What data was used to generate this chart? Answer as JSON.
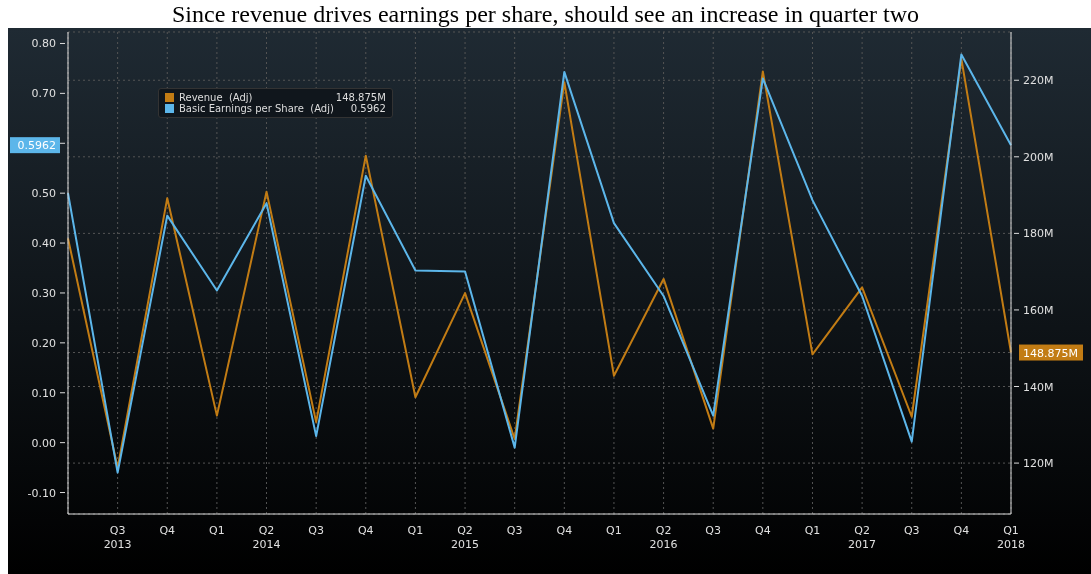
{
  "chart_data": {
    "type": "line",
    "title": "Since revenue drives earnings per share, should see an increase in quarter two",
    "categories": [
      null,
      "Q3",
      "Q4",
      "Q1",
      "Q2",
      "Q3",
      "Q4",
      "Q1",
      "Q2",
      "Q3",
      "Q4",
      "Q1",
      "Q2",
      "Q3",
      "Q4",
      "Q1",
      "Q2",
      "Q3",
      "Q4",
      "Q1"
    ],
    "series": [
      {
        "name": "Revenue  (Adj)",
        "color": "#c27c14",
        "axis": "y2",
        "values": [
          178.7,
          118.8,
          189.2,
          132.4,
          190.9,
          130.7,
          200.3,
          137.2,
          164.4,
          126.3,
          219.5,
          142.8,
          168.1,
          129.0,
          222.3,
          148.4,
          165.9,
          132.1,
          225.6,
          148.875
        ]
      },
      {
        "name": "Basic Earnings per Share  (Adj)",
        "color": "#5cb6ea",
        "values": [
          0.5,
          -0.06,
          0.455,
          0.305,
          0.48,
          0.013,
          0.535,
          0.345,
          0.343,
          -0.01,
          0.743,
          0.44,
          0.294,
          0.054,
          0.73,
          0.486,
          0.294,
          0.002,
          0.778,
          0.5962
        ]
      }
    ],
    "ylim": [
      -0.143,
      0.823
    ],
    "yticks": [
      {
        "value": -0.1,
        "label": "-0.10"
      },
      {
        "value": 0,
        "label": "0.00"
      },
      {
        "value": 0.1,
        "label": "0.10"
      },
      {
        "value": 0.2,
        "label": "0.20"
      },
      {
        "value": 0.3,
        "label": "0.30"
      },
      {
        "value": 0.4,
        "label": "0.40"
      },
      {
        "value": 0.5,
        "label": "0.50"
      },
      {
        "value": 0.5962,
        "label": "0.5962"
      },
      {
        "value": 0.6,
        "label": null
      },
      {
        "value": 0.7,
        "label": "0.70"
      },
      {
        "value": 0.8,
        "label": "0.80"
      }
    ],
    "y2lim": [
      106.7,
      232.6
    ],
    "y2ticks": [
      {
        "value": 120,
        "label": "120M"
      },
      {
        "value": 140,
        "label": "140M"
      },
      {
        "value": 148.875,
        "label": "148.875M"
      },
      {
        "value": 160,
        "label": "160M"
      },
      {
        "value": 180,
        "label": "180M"
      },
      {
        "value": 200,
        "label": "200M"
      },
      {
        "value": 220,
        "label": "220M"
      }
    ],
    "annotations": [
      "2013",
      "2014",
      "2015",
      "2016",
      "2017",
      "2018"
    ],
    "grid": true,
    "legend": "top left",
    "marker": "none",
    "line_style": "solid"
  }
}
